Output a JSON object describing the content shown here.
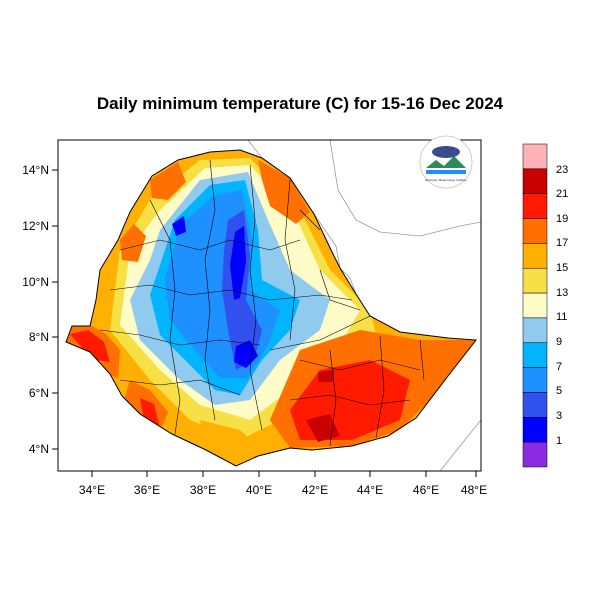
{
  "title": "Daily minimum temperature (C) for 15-16 Dec 2024",
  "logo": {
    "text": "Ethiopian Meteorology Institute"
  },
  "axes": {
    "lon_ticks": [
      "34°E",
      "36°E",
      "38°E",
      "40°E",
      "42°E",
      "44°E",
      "46°E",
      "48°E"
    ],
    "lat_ticks": [
      "14°N",
      "12°N",
      "10°N",
      "8°N",
      "6°N",
      "4°N"
    ],
    "lon_range": [
      32.9,
      48.2
    ],
    "lat_range": [
      3.2,
      15.0
    ]
  },
  "colorbar": {
    "labels": [
      "23",
      "21",
      "19",
      "17",
      "15",
      "13",
      "11",
      "9",
      "7",
      "5",
      "3",
      "1"
    ],
    "colors": [
      "#ffb3b8",
      "#c80000",
      "#ff1a00",
      "#ff7000",
      "#ffb000",
      "#f7e045",
      "#fffcc8",
      "#90caef",
      "#00b4ff",
      "#1e90ff",
      "#3050f0",
      "#0000ff",
      "#8a2be2"
    ]
  }
}
